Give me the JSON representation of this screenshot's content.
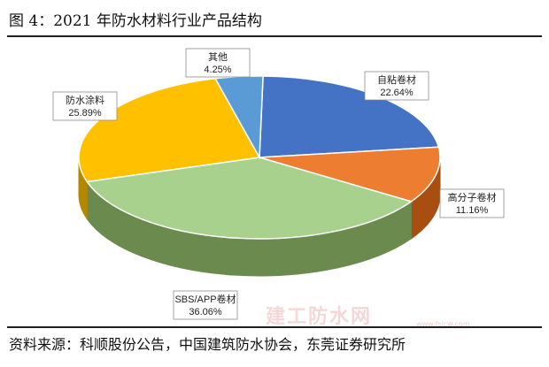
{
  "figure": {
    "title": "图 4：2021 年防水材料行业产品结构",
    "source": "资料来源：科顺股份公告，中国建筑防水协会，东莞证券研究所"
  },
  "watermark": {
    "text": "建工防水网",
    "url": "www.fsjcw.com"
  },
  "chart_data": {
    "type": "pie",
    "style": "3d",
    "labels": [
      "自粘卷材",
      "高分子卷材",
      "SBS/APP卷材",
      "防水涂料",
      "其他"
    ],
    "values": [
      22.64,
      11.16,
      36.06,
      25.89,
      4.25
    ],
    "value_labels": [
      "22.64%",
      "11.16%",
      "36.06%",
      "25.89%",
      "4.25%"
    ],
    "colors": [
      "#4472C4",
      "#ED7D31",
      "#A9D18E",
      "#FFC000",
      "#5B9BD5"
    ],
    "side_colors": [
      "#2F528F",
      "#A84E10",
      "#6A8A4E",
      "#B58700",
      "#3A6EA0"
    ],
    "legend": "none"
  }
}
